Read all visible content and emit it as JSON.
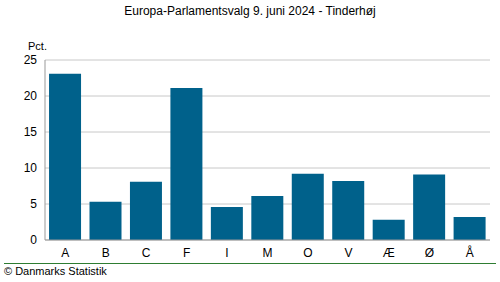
{
  "chart_data": {
    "type": "bar",
    "title": "Europa-Parlamentsvalg 9. juni 2024 - Tinderhøj",
    "ylabel": "Pct.",
    "annotations": [
      "© Danmarks Statistik"
    ],
    "categories": [
      "A",
      "B",
      "C",
      "F",
      "I",
      "M",
      "O",
      "V",
      "Æ",
      "Ø",
      "Å"
    ],
    "values": [
      23.1,
      5.3,
      8.1,
      21.1,
      4.6,
      6.1,
      9.2,
      8.2,
      2.8,
      9.1,
      3.2
    ],
    "color": "#00618b",
    "ylim": [
      0,
      25
    ],
    "yticks": [
      0,
      5,
      10,
      15,
      20,
      25
    ],
    "grid": true
  }
}
